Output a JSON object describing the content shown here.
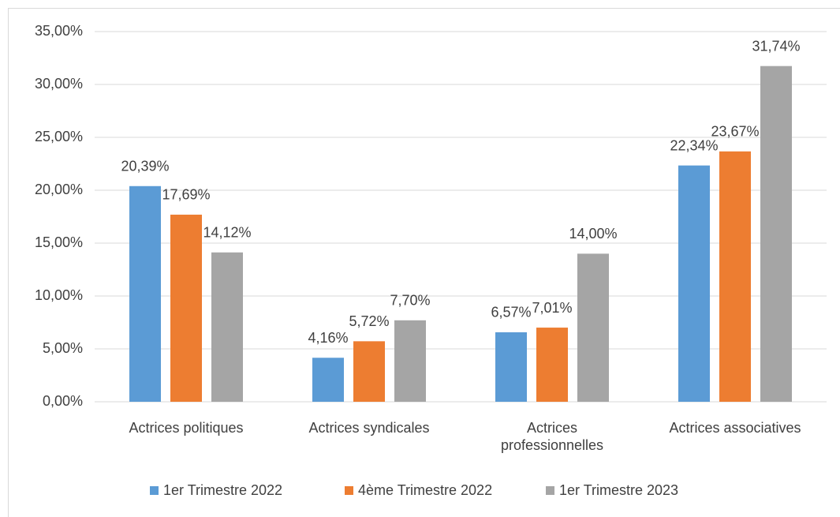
{
  "chart_data": {
    "type": "bar",
    "categories": [
      "Actrices politiques",
      "Actrices syndicales",
      "Actrices professionnelles",
      "Actrices associatives"
    ],
    "series": [
      {
        "name": "1er Trimestre 2022",
        "color": "#5b9bd5",
        "values": [
          20.39,
          4.16,
          6.57,
          22.34
        ],
        "value_labels": [
          "20,39%",
          "4,16%",
          "6,57%",
          "22,34%"
        ]
      },
      {
        "name": "4ème Trimestre 2022",
        "color": "#ed7d31",
        "values": [
          17.69,
          5.72,
          7.01,
          23.67
        ],
        "value_labels": [
          "17,69%",
          "5,72%",
          "7,01%",
          "23,67%"
        ]
      },
      {
        "name": "1er Trimestre 2023",
        "color": "#a5a5a5",
        "values": [
          14.12,
          7.7,
          14.0,
          31.74
        ],
        "value_labels": [
          "14,12%",
          "7,70%",
          "14,00%",
          "31,74%"
        ]
      }
    ],
    "ylim": [
      0,
      35
    ],
    "yticks": [
      {
        "value": 0,
        "label": "0,00%"
      },
      {
        "value": 5,
        "label": "5,00%"
      },
      {
        "value": 10,
        "label": "10,00%"
      },
      {
        "value": 15,
        "label": "15,00%"
      },
      {
        "value": 20,
        "label": "20,00%"
      },
      {
        "value": 25,
        "label": "25,00%"
      },
      {
        "value": 30,
        "label": "30,00%"
      },
      {
        "value": 35,
        "label": "35,00%"
      }
    ],
    "grid": true,
    "legend": "bottom"
  }
}
